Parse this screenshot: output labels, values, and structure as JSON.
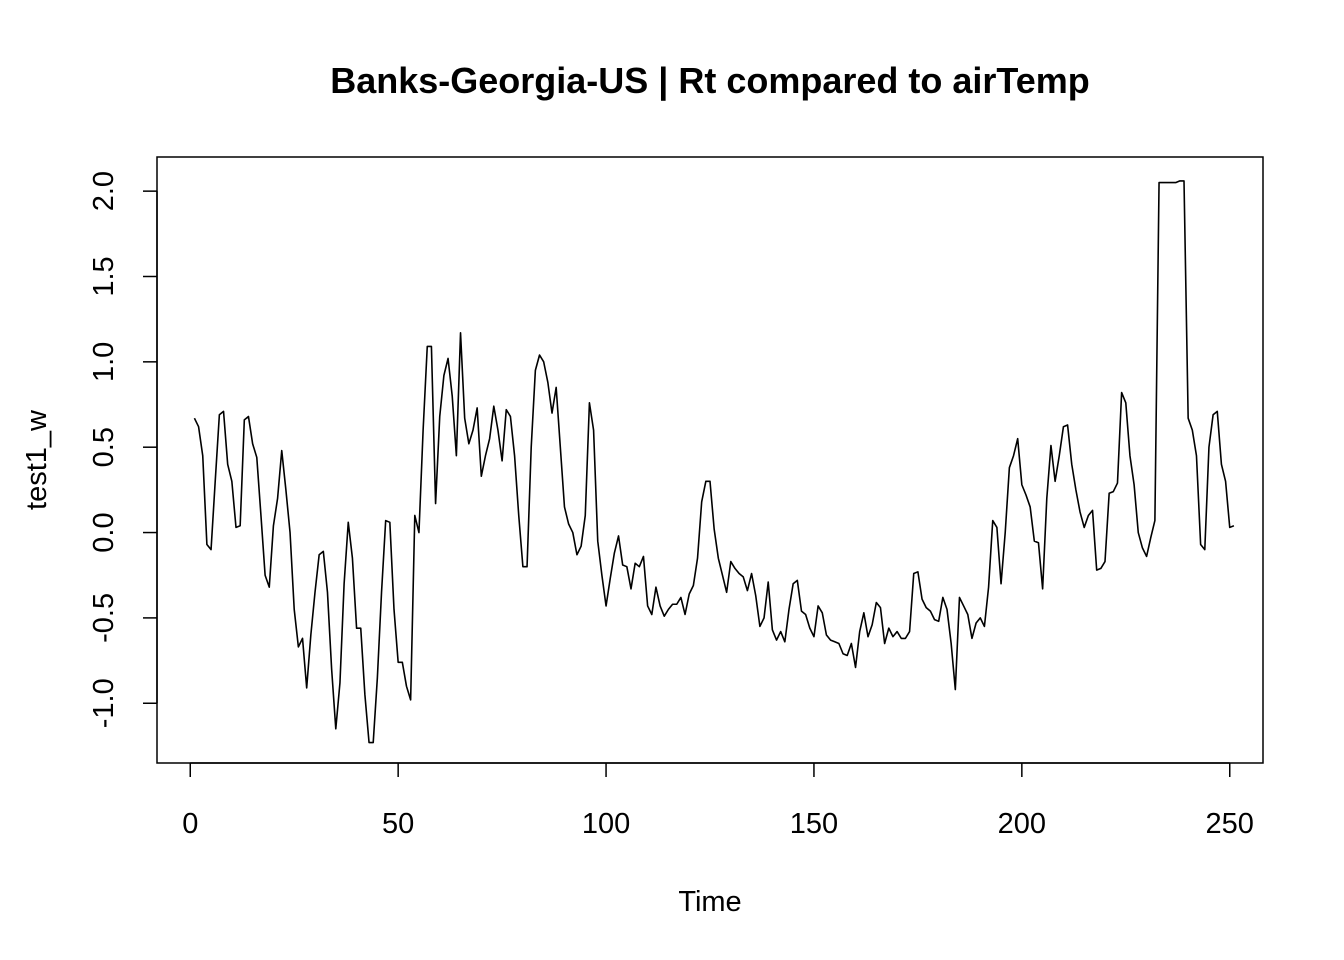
{
  "chart_data": {
    "type": "line",
    "title": "Banks-Georgia-US | Rt compared to airTemp",
    "xlabel": "Time",
    "ylabel": "test1_w",
    "xlim": [
      -8,
      258
    ],
    "ylim": [
      -1.35,
      2.2
    ],
    "x_ticks": [
      0,
      50,
      100,
      150,
      200,
      250
    ],
    "x_tick_labels": [
      "0",
      "50",
      "100",
      "150",
      "200",
      "250"
    ],
    "y_ticks": [
      -1.0,
      -0.5,
      0.0,
      0.5,
      1.0,
      1.5,
      2.0
    ],
    "y_tick_labels": [
      "-1.0",
      "-0.5",
      "0.0",
      "0.5",
      "1.0",
      "1.5",
      "2.0"
    ],
    "grid": false,
    "color": "#000000",
    "series": [
      {
        "x_start": 1,
        "values": [
          0.67,
          0.62,
          0.45,
          -0.07,
          -0.1,
          0.3,
          0.69,
          0.71,
          0.4,
          0.3,
          0.03,
          0.04,
          0.66,
          0.68,
          0.52,
          0.44,
          0.1,
          -0.25,
          -0.32,
          0.04,
          0.2,
          0.48,
          0.25,
          0.0,
          -0.45,
          -0.67,
          -0.62,
          -0.91,
          -0.6,
          -0.35,
          -0.13,
          -0.11,
          -0.35,
          -0.8,
          -1.15,
          -0.88,
          -0.3,
          0.06,
          -0.15,
          -0.56,
          -0.56,
          -0.95,
          -1.23,
          -1.23,
          -0.85,
          -0.35,
          0.07,
          0.06,
          -0.45,
          -0.76,
          -0.76,
          -0.9,
          -0.98,
          0.1,
          0.0,
          0.6,
          1.09,
          1.09,
          0.17,
          0.68,
          0.92,
          1.02,
          0.8,
          0.45,
          1.17,
          0.67,
          0.52,
          0.6,
          0.73,
          0.33,
          0.45,
          0.55,
          0.74,
          0.6,
          0.42,
          0.72,
          0.68,
          0.45,
          0.1,
          -0.2,
          -0.2,
          0.5,
          0.95,
          1.04,
          1.0,
          0.88,
          0.7,
          0.85,
          0.5,
          0.15,
          0.05,
          0.0,
          -0.13,
          -0.08,
          0.1,
          0.76,
          0.6,
          -0.05,
          -0.25,
          -0.43,
          -0.27,
          -0.12,
          -0.02,
          -0.19,
          -0.2,
          -0.33,
          -0.18,
          -0.2,
          -0.14,
          -0.43,
          -0.48,
          -0.32,
          -0.43,
          -0.49,
          -0.45,
          -0.42,
          -0.42,
          -0.38,
          -0.48,
          -0.36,
          -0.31,
          -0.15,
          0.18,
          0.3,
          0.3,
          0.02,
          -0.15,
          -0.25,
          -0.35,
          -0.17,
          -0.21,
          -0.24,
          -0.26,
          -0.34,
          -0.24,
          -0.37,
          -0.55,
          -0.5,
          -0.29,
          -0.57,
          -0.63,
          -0.58,
          -0.64,
          -0.45,
          -0.3,
          -0.28,
          -0.46,
          -0.48,
          -0.56,
          -0.61,
          -0.43,
          -0.47,
          -0.6,
          -0.63,
          -0.64,
          -0.65,
          -0.71,
          -0.72,
          -0.65,
          -0.79,
          -0.58,
          -0.47,
          -0.61,
          -0.54,
          -0.41,
          -0.44,
          -0.65,
          -0.56,
          -0.61,
          -0.58,
          -0.62,
          -0.62,
          -0.58,
          -0.24,
          -0.23,
          -0.39,
          -0.44,
          -0.46,
          -0.51,
          -0.52,
          -0.38,
          -0.45,
          -0.65,
          -0.92,
          -0.38,
          -0.43,
          -0.48,
          -0.62,
          -0.53,
          -0.5,
          -0.55,
          -0.32,
          0.07,
          0.03,
          -0.3,
          0.0,
          0.38,
          0.45,
          0.55,
          0.28,
          0.22,
          0.15,
          -0.05,
          -0.06,
          -0.33,
          0.2,
          0.51,
          0.3,
          0.45,
          0.62,
          0.63,
          0.4,
          0.25,
          0.12,
          0.03,
          0.1,
          0.13,
          -0.22,
          -0.21,
          -0.17,
          0.23,
          0.24,
          0.29,
          0.82,
          0.76,
          0.45,
          0.28,
          0.0,
          -0.09,
          -0.14,
          -0.03,
          0.07,
          2.05,
          2.05,
          2.05,
          2.05,
          2.05,
          2.06,
          2.06,
          0.67,
          0.6,
          0.45,
          -0.07,
          -0.1,
          0.5,
          0.69,
          0.71,
          0.4,
          0.3,
          0.03,
          0.04
        ]
      }
    ]
  }
}
